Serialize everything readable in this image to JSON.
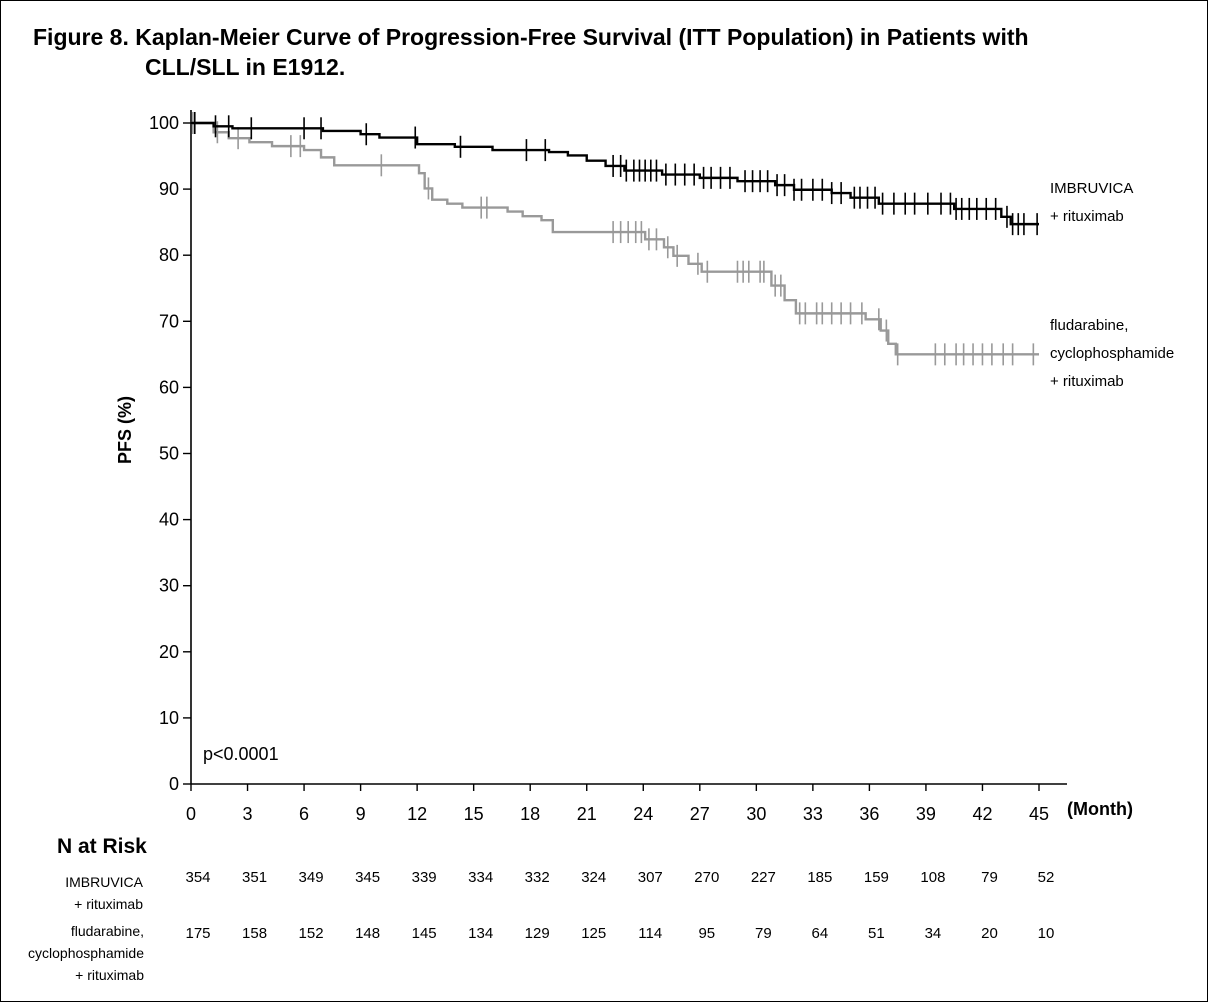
{
  "figure": {
    "title_line1": "Figure 8. Kaplan-Meier Curve of Progression-Free Survival (ITT Population) in Patients with",
    "title_line2": "CLL/SLL in E1912."
  },
  "chart_data": {
    "type": "line",
    "xlabel": "(Month)",
    "ylabel": "PFS (%)",
    "xlim": [
      0,
      45
    ],
    "ylim": [
      0,
      100
    ],
    "xticks": [
      0,
      3,
      6,
      9,
      12,
      15,
      18,
      21,
      24,
      27,
      30,
      33,
      36,
      39,
      42,
      45
    ],
    "yticks": [
      0,
      10,
      20,
      30,
      40,
      50,
      60,
      70,
      80,
      90,
      100
    ],
    "annotation": "p<0.0001",
    "series": [
      {
        "name": "IMBRUVICA + rituximab",
        "label_lines": [
          "IMBRUVICA",
          "+ rituximab"
        ],
        "color": "#000000",
        "step": [
          [
            0,
            100
          ],
          [
            1.2,
            99.5
          ],
          [
            2.2,
            99.2
          ],
          [
            7,
            98.8
          ],
          [
            9,
            98.3
          ],
          [
            10,
            97.8
          ],
          [
            12,
            96.8
          ],
          [
            14,
            96.4
          ],
          [
            16,
            95.9
          ],
          [
            19,
            95.6
          ],
          [
            20,
            95.1
          ],
          [
            21,
            94.3
          ],
          [
            22,
            93.5
          ],
          [
            23,
            92.8
          ],
          [
            25,
            92.2
          ],
          [
            27,
            91.7
          ],
          [
            29,
            91.2
          ],
          [
            31,
            90.6
          ],
          [
            32,
            89.9
          ],
          [
            34,
            89.4
          ],
          [
            35,
            88.7
          ],
          [
            36.5,
            87.8
          ],
          [
            40.5,
            87
          ],
          [
            43,
            85.8
          ],
          [
            43.5,
            84.7
          ],
          [
            45,
            84.7
          ]
        ],
        "censors": [
          0.2,
          1.3,
          2.0,
          3.2,
          6.0,
          6.9,
          9.3,
          11.9,
          14.3,
          17.8,
          18.8,
          22.4,
          22.8,
          23.1,
          23.5,
          23.8,
          24.1,
          24.4,
          24.7,
          25.2,
          25.7,
          26.2,
          26.7,
          27.2,
          27.6,
          28.1,
          28.6,
          29.4,
          29.8,
          30.2,
          30.6,
          31.1,
          31.5,
          32.0,
          32.4,
          33.0,
          33.5,
          34.0,
          34.5,
          35.2,
          35.5,
          35.9,
          36.3,
          36.7,
          37.3,
          37.9,
          38.4,
          39.1,
          39.8,
          40.3,
          40.6,
          40.9,
          41.3,
          41.7,
          42.2,
          42.7,
          43.3,
          43.6,
          43.9,
          44.2,
          44.9
        ],
        "at_risk": [
          354,
          351,
          349,
          345,
          339,
          334,
          332,
          324,
          307,
          270,
          227,
          185,
          159,
          108,
          79,
          52
        ]
      },
      {
        "name": "fludarabine, cyclophosphamide + rituximab",
        "label_lines": [
          "fludarabine,",
          "cyclophosphamide",
          "+ rituximab"
        ],
        "color": "#999999",
        "step": [
          [
            0,
            100
          ],
          [
            1.2,
            98.6
          ],
          [
            2.0,
            97.7
          ],
          [
            3.1,
            97.1
          ],
          [
            4.3,
            96.5
          ],
          [
            6.0,
            95.9
          ],
          [
            6.9,
            94.8
          ],
          [
            7.6,
            93.6
          ],
          [
            10.1,
            93.6
          ],
          [
            12.1,
            92.4
          ],
          [
            12.4,
            90.1
          ],
          [
            12.8,
            88.4
          ],
          [
            13.6,
            87.8
          ],
          [
            14.4,
            87.2
          ],
          [
            16.8,
            86.6
          ],
          [
            17.6,
            85.9
          ],
          [
            18.6,
            85.3
          ],
          [
            19.2,
            83.5
          ],
          [
            21.8,
            83.5
          ],
          [
            24.1,
            82.4
          ],
          [
            25.1,
            81.2
          ],
          [
            25.6,
            79.9
          ],
          [
            26.4,
            78.7
          ],
          [
            27.1,
            77.5
          ],
          [
            29.5,
            77.5
          ],
          [
            30.8,
            75.4
          ],
          [
            31.5,
            73.2
          ],
          [
            32.1,
            71.2
          ],
          [
            35.8,
            70.3
          ],
          [
            36.6,
            68.6
          ],
          [
            37.0,
            66.6
          ],
          [
            37.4,
            65.0
          ],
          [
            45.0,
            65.0
          ]
        ],
        "censors": [
          0.1,
          1.4,
          2.5,
          5.3,
          5.8,
          10.1,
          12.6,
          15.4,
          15.7,
          22.4,
          22.8,
          23.2,
          23.6,
          23.9,
          24.3,
          24.7,
          25.3,
          25.8,
          26.9,
          27.4,
          29.0,
          29.3,
          29.6,
          30.2,
          30.4,
          31.0,
          31.3,
          32.3,
          32.6,
          33.2,
          33.5,
          34.0,
          34.5,
          35.0,
          35.6,
          36.5,
          36.9,
          37.5,
          39.5,
          40.0,
          40.6,
          41.0,
          41.5,
          42.0,
          42.5,
          43.1,
          43.6,
          44.7
        ],
        "at_risk": [
          175,
          158,
          152,
          148,
          145,
          134,
          129,
          125,
          114,
          95,
          79,
          64,
          51,
          34,
          20,
          10
        ]
      }
    ]
  },
  "risk_table": {
    "title": "N at Risk",
    "row1_label": "IMBRUVICA\n+ rituximab",
    "row2_label": "fludarabine,\ncyclophosphamide\n+ rituximab"
  }
}
